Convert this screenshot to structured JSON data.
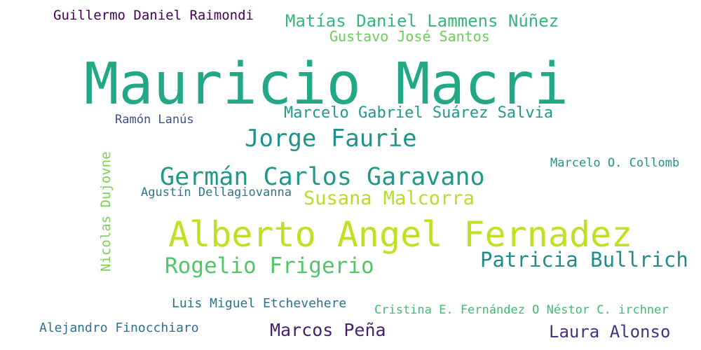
{
  "words": [
    {
      "text": "Mauricio Macri",
      "color": "#22a884"
    },
    {
      "text": "Alberto Angel Fernadez",
      "color": "#c2df23"
    },
    {
      "text": "Germán Carlos Garavano",
      "color": "#1f9a8a"
    },
    {
      "text": "Jorge Faurie",
      "color": "#1f948c"
    },
    {
      "text": "Rogelio Frigerio",
      "color": "#52c569"
    },
    {
      "text": "Patricia Bullrich",
      "color": "#228c8d"
    },
    {
      "text": "Susana Malcorra",
      "color": "#b4de2c"
    },
    {
      "text": "Marcelo Gabriel Suárez Salvia",
      "color": "#1e9c89"
    },
    {
      "text": "Matías Daniel Lammens Núñez",
      "color": "#35b779"
    },
    {
      "text": "Gustavo José Santos",
      "color": "#6ccd5a"
    },
    {
      "text": "Guillermo Daniel Raimondi",
      "color": "#440154"
    },
    {
      "text": "Ramón Lanús",
      "color": "#3b528b"
    },
    {
      "text": "Nicolas Dujovne",
      "color": "#7ad151"
    },
    {
      "text": "Agustín Dellagiovanna",
      "color": "#2a788e"
    },
    {
      "text": "Marcelo O. Collomb",
      "color": "#21918c"
    },
    {
      "text": "Luis Miguel Etchevehere",
      "color": "#2c728e"
    },
    {
      "text": "Cristina E. Fernández O Néstor C. irchner",
      "color": "#3dbc74"
    },
    {
      "text": "Alejandro Finocchiaro",
      "color": "#2d708e"
    },
    {
      "text": "Marcos Peña",
      "color": "#481f70"
    },
    {
      "text": "Laura Alonso",
      "color": "#46337e"
    }
  ]
}
